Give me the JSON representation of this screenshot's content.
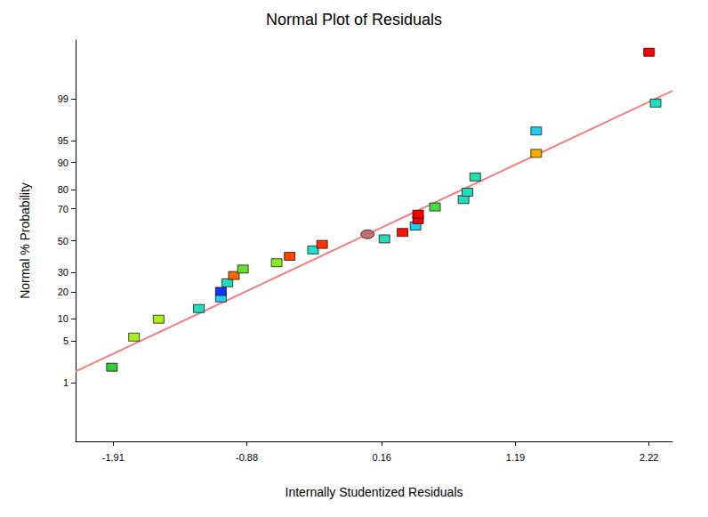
{
  "chart_data": {
    "type": "scatter",
    "title": "Normal Plot of Residuals",
    "x_label": "Internally Studentized Residuals",
    "y_label": "Normal % Probability",
    "xlim": [
      -2.2,
      2.4
    ],
    "xticks": [
      -1.91,
      -0.88,
      0.16,
      1.19,
      2.22
    ],
    "ylim": [
      0.05,
      99.95
    ],
    "yticks": [
      1,
      5,
      10,
      20,
      30,
      50,
      70,
      80,
      90,
      95,
      99
    ],
    "grid": false,
    "series": [
      {
        "type": "scatter",
        "marker": "square",
        "x": [
          -1.92,
          -1.75,
          -1.56,
          -1.25,
          -1.08,
          -1.08,
          -1.03,
          -0.98,
          -0.91,
          -0.65,
          -0.55,
          -0.37,
          -0.3,
          0.18,
          0.32,
          0.42,
          0.44,
          0.44,
          0.57,
          0.79,
          0.82,
          0.88,
          1.35,
          1.35,
          2.27,
          2.22
        ],
        "values": [
          1.9,
          5.7,
          9.9,
          13.3,
          17.4,
          20.3,
          24.5,
          28.4,
          32.1,
          35.9,
          39.9,
          44.0,
          47.6,
          51.2,
          55.4,
          59.5,
          63.5,
          66.8,
          71.0,
          75.0,
          78.7,
          85.2,
          92.4,
          96.4,
          98.8,
          99.9
        ],
        "colors": [
          "#33cc33",
          "#aaee22",
          "#aaee22",
          "#22ddbb",
          "#22ccee",
          "#1133ff",
          "#22ddbb",
          "#ff6600",
          "#66dd33",
          "#88ee22",
          "#ff4400",
          "#22ddcc",
          "#ff3300",
          "#22ddbb",
          "#ff1100",
          "#22ccee",
          "#ff0000",
          "#ff0000",
          "#44dd44",
          "#22ddbb",
          "#22ddbb",
          "#22ddaa",
          "#ffaa00",
          "#22ccee",
          "#22ddbb",
          "#ff0000"
        ]
      },
      {
        "type": "scatter",
        "marker": "circle",
        "color": "#c07070",
        "x": [
          0.05
        ],
        "values": [
          54.2
        ]
      },
      {
        "type": "line",
        "color": "#f08080",
        "line_style": "solid",
        "x": [
          -2.2,
          2.4
        ],
        "values": [
          1.6,
          99.3
        ]
      }
    ]
  }
}
